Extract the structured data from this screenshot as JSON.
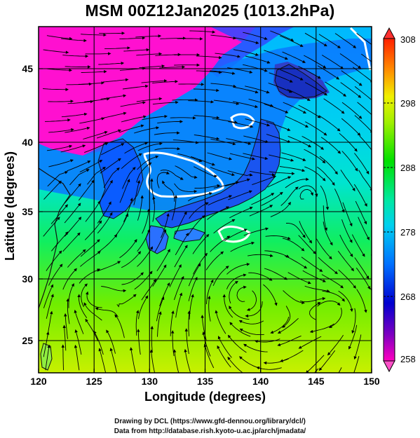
{
  "title": "MSM 00Z12Jan2025 (1013.2hPa)",
  "xaxis": {
    "label": "Longitude (degrees)",
    "ticks": [
      "120",
      "125",
      "130",
      "135",
      "140",
      "145",
      "150"
    ]
  },
  "yaxis": {
    "label": "Latitude  (degrees)",
    "ticks": [
      "25",
      "30",
      "35",
      "40",
      "45"
    ]
  },
  "colorbar": {
    "ticks": [
      "308",
      "298",
      "288",
      "278",
      "268",
      "258"
    ],
    "min": 258,
    "max": 308
  },
  "credits": {
    "line1": "Drawing by DCL (https://www.gfd-dennou.org/library/dcl/)",
    "line2": "Data from http://database.rish.kyoto-u.ac.jp/arch/jmadata/"
  },
  "colors": {
    "cold": "#ff00c8",
    "warm": "#00dd00",
    "land_outline": "#111111"
  }
}
